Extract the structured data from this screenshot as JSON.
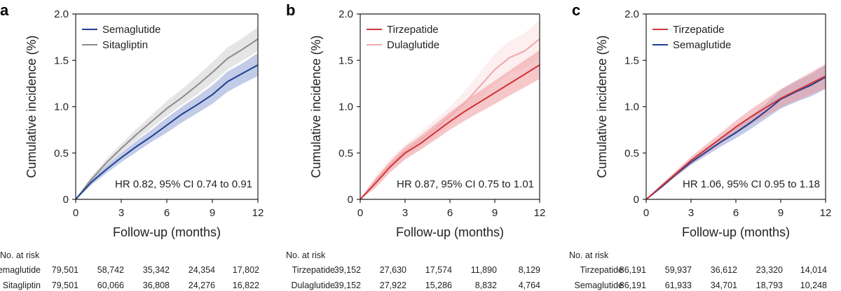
{
  "chart_data": [
    {
      "panel": "a",
      "type": "line",
      "xlabel": "Follow-up (months)",
      "ylabel": "Cumulative incidence (%)",
      "xlim": [
        0,
        12
      ],
      "ylim": [
        0,
        2.0
      ],
      "xticks": [
        "0",
        "3",
        "6",
        "9",
        "12"
      ],
      "yticks": [
        "0",
        "0.5",
        "1.0",
        "1.5",
        "2.0"
      ],
      "legend_position": "top-left",
      "annotation": "HR 0.82, 95% CI 0.74 to 0.91",
      "series": [
        {
          "name": "Semaglutide",
          "color": "#1f3f8f",
          "band_color": "#8fa0d6",
          "x": [
            0,
            1,
            2,
            3,
            4,
            5,
            6,
            7,
            8,
            9,
            10,
            11,
            12
          ],
          "y": [
            0,
            0.18,
            0.32,
            0.45,
            0.57,
            0.68,
            0.8,
            0.92,
            1.02,
            1.13,
            1.27,
            1.36,
            1.45
          ],
          "lower": [
            0,
            0.15,
            0.28,
            0.4,
            0.51,
            0.62,
            0.72,
            0.83,
            0.93,
            1.03,
            1.16,
            1.25,
            1.33
          ],
          "upper": [
            0,
            0.21,
            0.36,
            0.5,
            0.63,
            0.75,
            0.88,
            1.0,
            1.11,
            1.23,
            1.38,
            1.47,
            1.58
          ]
        },
        {
          "name": "Sitagliptin",
          "color": "#8c8c8c",
          "band_color": "#cfcfcf",
          "x": [
            0,
            1,
            2,
            3,
            4,
            5,
            6,
            7,
            8,
            9,
            10,
            11,
            12
          ],
          "y": [
            0,
            0.21,
            0.39,
            0.55,
            0.7,
            0.84,
            0.98,
            1.1,
            1.23,
            1.37,
            1.52,
            1.62,
            1.73
          ],
          "lower": [
            0,
            0.18,
            0.35,
            0.5,
            0.64,
            0.77,
            0.9,
            1.02,
            1.13,
            1.26,
            1.4,
            1.5,
            1.6
          ],
          "upper": [
            0,
            0.24,
            0.43,
            0.6,
            0.76,
            0.91,
            1.06,
            1.19,
            1.33,
            1.48,
            1.64,
            1.74,
            1.86
          ]
        }
      ],
      "risk_table": {
        "title": "No. at risk",
        "rows": [
          {
            "name": "Semaglutide",
            "values": [
              "79,501",
              "58,742",
              "35,342",
              "24,354",
              "17,802"
            ]
          },
          {
            "name": "Sitagliptin",
            "values": [
              "79,501",
              "60,066",
              "36,808",
              "24,276",
              "16,822"
            ]
          }
        ]
      }
    },
    {
      "panel": "b",
      "type": "line",
      "xlabel": "Follow-up (months)",
      "ylabel": "Cumulative incidence (%)",
      "xlim": [
        0,
        12
      ],
      "ylim": [
        0,
        2.0
      ],
      "xticks": [
        "0",
        "3",
        "6",
        "9",
        "12"
      ],
      "yticks": [
        "0",
        "0.5",
        "1.0",
        "1.5",
        "2.0"
      ],
      "legend_position": "top-left",
      "annotation": "HR 0.87, 95% CI 0.75 to 1.01",
      "series": [
        {
          "name": "Tirzepatide",
          "color": "#d0343a",
          "band_color": "#ee9a9d",
          "x": [
            0,
            1,
            2,
            3,
            4,
            5,
            6,
            7,
            8,
            9,
            10,
            11,
            12
          ],
          "y": [
            0,
            0.17,
            0.35,
            0.5,
            0.6,
            0.72,
            0.84,
            0.95,
            1.05,
            1.15,
            1.25,
            1.35,
            1.45
          ],
          "lower": [
            0,
            0.12,
            0.29,
            0.43,
            0.53,
            0.64,
            0.75,
            0.85,
            0.94,
            1.03,
            1.12,
            1.21,
            1.3
          ],
          "upper": [
            0,
            0.22,
            0.41,
            0.57,
            0.68,
            0.81,
            0.94,
            1.06,
            1.17,
            1.28,
            1.39,
            1.5,
            1.61
          ]
        },
        {
          "name": "Dulaglutide",
          "color": "#f0a8aa",
          "band_color": "#fbe0e1",
          "x": [
            0,
            1,
            2,
            3,
            4,
            5,
            6,
            7,
            8,
            9,
            10,
            11,
            12
          ],
          "y": [
            0,
            0.2,
            0.38,
            0.52,
            0.64,
            0.76,
            0.9,
            1.04,
            1.22,
            1.4,
            1.53,
            1.6,
            1.73
          ],
          "lower": [
            0,
            0.15,
            0.32,
            0.45,
            0.56,
            0.67,
            0.8,
            0.92,
            1.08,
            1.24,
            1.36,
            1.42,
            1.53
          ],
          "upper": [
            0,
            0.25,
            0.44,
            0.59,
            0.72,
            0.86,
            1.0,
            1.17,
            1.37,
            1.57,
            1.71,
            1.79,
            1.94
          ]
        }
      ],
      "risk_table": {
        "title": "No. at risk",
        "rows": [
          {
            "name": "Tirzepatide",
            "values": [
              "39,152",
              "27,630",
              "17,574",
              "11,890",
              "8,129"
            ]
          },
          {
            "name": "Dulaglutide",
            "values": [
              "39,152",
              "27,922",
              "15,286",
              "8,832",
              "4,764"
            ]
          }
        ]
      }
    },
    {
      "panel": "c",
      "type": "line",
      "xlabel": "Follow-up (months)",
      "ylabel": "Cumulative incidence (%)",
      "xlim": [
        0,
        12
      ],
      "ylim": [
        0,
        2.0
      ],
      "xticks": [
        "0",
        "3",
        "6",
        "9",
        "12"
      ],
      "yticks": [
        "0",
        "0.5",
        "1.0",
        "1.5",
        "2.0"
      ],
      "legend_position": "top-left",
      "annotation": "HR 1.06, 95% CI 0.95 to 1.18",
      "series": [
        {
          "name": "Tirzepatide",
          "color": "#d0343a",
          "band_color": "#ee9a9d",
          "x": [
            0,
            1,
            2,
            3,
            4,
            5,
            6,
            7,
            8,
            9,
            10,
            11,
            12
          ],
          "y": [
            0,
            0.14,
            0.28,
            0.42,
            0.54,
            0.66,
            0.78,
            0.89,
            0.99,
            1.09,
            1.17,
            1.25,
            1.33
          ],
          "lower": [
            0,
            0.12,
            0.25,
            0.38,
            0.49,
            0.6,
            0.71,
            0.81,
            0.9,
            0.99,
            1.06,
            1.13,
            1.2
          ],
          "upper": [
            0,
            0.16,
            0.31,
            0.46,
            0.59,
            0.72,
            0.85,
            0.97,
            1.08,
            1.19,
            1.28,
            1.37,
            1.46
          ]
        },
        {
          "name": "Semaglutide",
          "color": "#1f3f8f",
          "band_color": "#8fa0d6",
          "x": [
            0,
            1,
            2,
            3,
            4,
            5,
            6,
            7,
            8,
            9,
            10,
            11,
            12
          ],
          "y": [
            0,
            0.13,
            0.27,
            0.4,
            0.51,
            0.62,
            0.72,
            0.83,
            0.95,
            1.08,
            1.16,
            1.23,
            1.32
          ],
          "lower": [
            0,
            0.12,
            0.25,
            0.37,
            0.47,
            0.57,
            0.66,
            0.76,
            0.87,
            0.98,
            1.05,
            1.11,
            1.19
          ],
          "upper": [
            0,
            0.14,
            0.29,
            0.43,
            0.55,
            0.67,
            0.78,
            0.9,
            1.03,
            1.18,
            1.27,
            1.35,
            1.45
          ]
        }
      ],
      "risk_table": {
        "title": "No. at risk",
        "rows": [
          {
            "name": "Tirzepatide",
            "values": [
              "86,191",
              "59,937",
              "36,612",
              "23,320",
              "14,014"
            ]
          },
          {
            "name": "Semaglutide",
            "values": [
              "86,191",
              "61,933",
              "34,701",
              "18,793",
              "10,248"
            ]
          }
        ]
      }
    }
  ]
}
